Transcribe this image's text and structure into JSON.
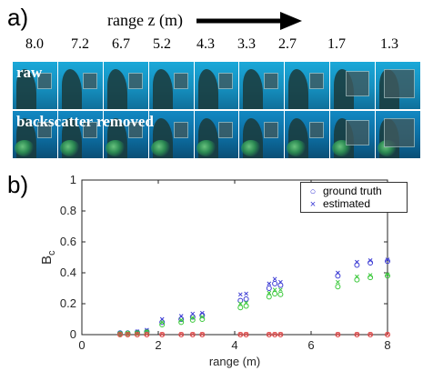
{
  "panel_a": {
    "label": "a)",
    "title": "range z (m)",
    "ranges": [
      "8.0",
      "7.2",
      "6.7",
      "5.2",
      "4.3",
      "3.3",
      "2.7",
      "1.7",
      "1.3"
    ],
    "row_labels": [
      "raw",
      "backscatter removed"
    ]
  },
  "panel_b": {
    "label": "b)"
  },
  "chart_data": {
    "type": "scatter",
    "xlabel": "range (m)",
    "ylabel": "B",
    "ylabel_sub": "c",
    "xlim": [
      0,
      8
    ],
    "ylim": [
      0,
      1
    ],
    "xticks": [
      "0",
      "2",
      "4",
      "6",
      "8"
    ],
    "yticks": [
      "0",
      "0.2",
      "0.4",
      "0.6",
      "0.8",
      "1"
    ],
    "grid": false,
    "legend_position": "top-right",
    "legend": [
      {
        "marker": "circle",
        "label": "ground truth"
      },
      {
        "marker": "x",
        "label": "estimated"
      }
    ],
    "x": [
      1.0,
      1.2,
      1.45,
      1.7,
      2.1,
      2.6,
      2.9,
      3.15,
      4.15,
      4.3,
      4.9,
      5.05,
      5.2,
      6.7,
      7.2,
      7.55,
      8.0
    ],
    "channels": [
      {
        "color": "#3b3bd4",
        "ground_truth": [
          0.01,
          0.01,
          0.015,
          0.02,
          0.08,
          0.1,
          0.115,
          0.125,
          0.22,
          0.23,
          0.3,
          0.33,
          0.32,
          0.38,
          0.45,
          0.465,
          0.475
        ],
        "estimated": [
          0.01,
          0.01,
          0.02,
          0.03,
          0.1,
          0.12,
          0.135,
          0.14,
          0.26,
          0.265,
          0.33,
          0.36,
          0.34,
          0.4,
          0.47,
          0.48,
          0.485
        ]
      },
      {
        "color": "#39c839",
        "ground_truth": [
          0.005,
          0.008,
          0.01,
          0.015,
          0.065,
          0.08,
          0.095,
          0.1,
          0.175,
          0.185,
          0.245,
          0.265,
          0.26,
          0.31,
          0.355,
          0.37,
          0.38
        ],
        "estimated": [
          0.008,
          0.01,
          0.012,
          0.02,
          0.08,
          0.095,
          0.11,
          0.115,
          0.2,
          0.205,
          0.27,
          0.29,
          0.29,
          0.34,
          0.375,
          0.385,
          0.39
        ]
      },
      {
        "color": "#e04848",
        "ground_truth": [
          0.0,
          0.0,
          0.0,
          0.0,
          0.0,
          0.0,
          0.0,
          0.0,
          0.0,
          0.0,
          0.0,
          0.0,
          0.0,
          0.0,
          0.0,
          0.0,
          0.0
        ],
        "estimated": [
          0.002,
          0.002,
          0.003,
          0.003,
          0.003,
          0.003,
          0.003,
          0.003,
          0.003,
          0.003,
          0.003,
          0.003,
          0.003,
          0.003,
          0.003,
          0.003,
          0.003
        ]
      }
    ]
  }
}
